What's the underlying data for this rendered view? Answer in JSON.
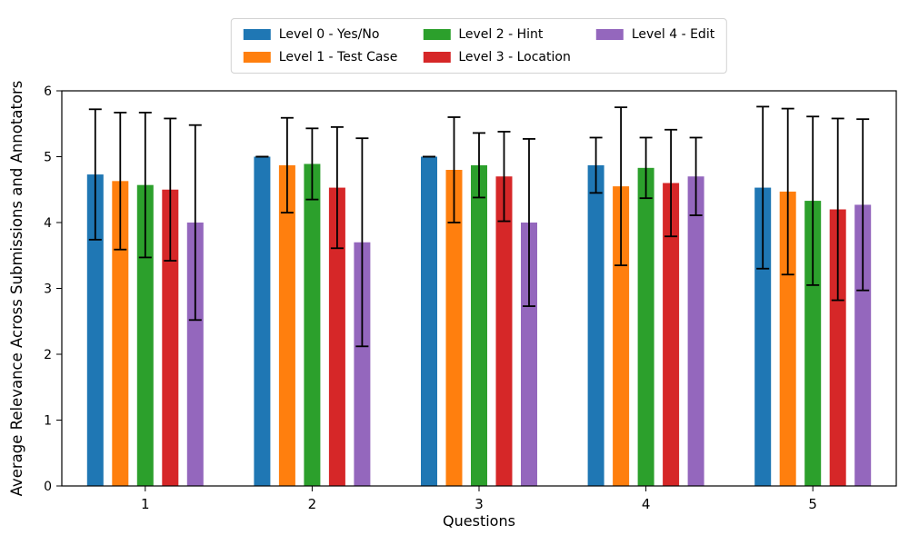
{
  "chart_data": {
    "type": "bar",
    "title": "",
    "xlabel": "Questions",
    "ylabel": "Average Relevance Across Submissions and Annotators",
    "categories": [
      "1",
      "2",
      "3",
      "4",
      "5"
    ],
    "ylim": [
      0,
      6
    ],
    "yticks": [
      0,
      1,
      2,
      3,
      4,
      5,
      6
    ],
    "grid": false,
    "error_bars": true,
    "error_bar_color": "#000000",
    "legend": {
      "position": "top-center",
      "columns": 3
    },
    "series": [
      {
        "name": "Level 0 - Yes/No",
        "color": "#1f77b4",
        "values": [
          4.73,
          5.0,
          5.0,
          4.87,
          4.53
        ],
        "errors": [
          0.99,
          0.0,
          0.0,
          0.42,
          1.23
        ]
      },
      {
        "name": "Level 1 - Test Case",
        "color": "#ff7f0e",
        "values": [
          4.63,
          4.87,
          4.8,
          4.55,
          4.47
        ],
        "errors": [
          1.04,
          0.72,
          0.8,
          1.2,
          1.26
        ]
      },
      {
        "name": "Level 2 - Hint",
        "color": "#2ca02c",
        "values": [
          4.57,
          4.89,
          4.87,
          4.83,
          4.33
        ],
        "errors": [
          1.1,
          0.54,
          0.49,
          0.46,
          1.28
        ]
      },
      {
        "name": "Level 3 - Location",
        "color": "#d62728",
        "values": [
          4.5,
          4.53,
          4.7,
          4.6,
          4.2
        ],
        "errors": [
          1.08,
          0.92,
          0.68,
          0.81,
          1.38
        ]
      },
      {
        "name": "Level 4 - Edit",
        "color": "#9467bd",
        "values": [
          4.0,
          3.7,
          4.0,
          4.7,
          4.27
        ],
        "errors": [
          1.48,
          1.58,
          1.27,
          0.59,
          1.3
        ]
      }
    ]
  }
}
